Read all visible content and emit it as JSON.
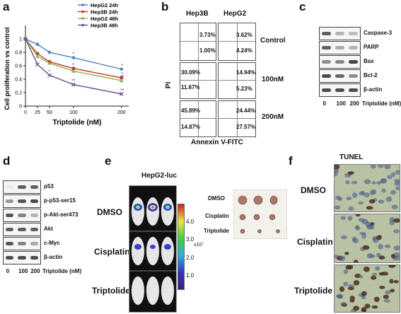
{
  "panels": {
    "a": "a",
    "b": "b",
    "c": "c",
    "d": "d",
    "e": "e",
    "f": "f"
  },
  "chart_data": {
    "type": "line",
    "xlabel": "Triptolide (nM)",
    "ylabel": "Cell proliferation vs control",
    "x": [
      0,
      25,
      50,
      100,
      200
    ],
    "xticks": [
      "0",
      "25",
      "50",
      "100",
      "200"
    ],
    "yticks": [
      "0",
      "0.2",
      "0.4",
      "0.6",
      "0.8",
      "1"
    ],
    "xlim": [
      0,
      215
    ],
    "ylim": [
      0,
      1.2
    ],
    "legend_position": "top-right",
    "series": [
      {
        "name": "HepG2 24h",
        "color": "#4a7fc1",
        "marker": "diamond",
        "values": [
          1.0,
          0.92,
          0.8,
          0.72,
          0.55
        ]
      },
      {
        "name": "Hep3B 24h",
        "color": "#c0392b",
        "marker": "square",
        "values": [
          1.0,
          0.78,
          0.66,
          0.56,
          0.42
        ]
      },
      {
        "name": "HepG2 48h",
        "color": "#8cb34a",
        "marker": "triangle",
        "values": [
          1.0,
          0.74,
          0.64,
          0.52,
          0.38
        ]
      },
      {
        "name": "Hep3B 48h",
        "color": "#6b4a8c",
        "marker": "x",
        "values": [
          1.0,
          0.62,
          0.46,
          0.32,
          0.18
        ]
      }
    ],
    "annotations": [
      "*",
      "*",
      "*",
      "*",
      "*",
      "**",
      "**",
      "**"
    ]
  },
  "panel_b": {
    "col_headers": [
      "Hep3B",
      "HepG2"
    ],
    "row_labels": [
      "Control",
      "100nM",
      "200nM"
    ],
    "ylabel": "PI",
    "xlabel": "Annexin V-FITC",
    "percents": [
      [
        [
          "3.73%",
          "1.00%"
        ],
        [
          "3.62%",
          "4.24%"
        ]
      ],
      [
        [
          "30.09%",
          "11.67%"
        ],
        [
          "14.94%",
          "5.23%"
        ]
      ],
      [
        [
          "45.89%",
          "14.87%"
        ],
        [
          "24.44%",
          "27.57%"
        ]
      ]
    ]
  },
  "panel_c": {
    "rows": [
      "Caspase-3",
      "PARP",
      "Bax",
      "Bcl-2",
      "β-actin"
    ],
    "lanes": [
      "0",
      "100",
      "200"
    ],
    "unit": "Triptolide (nM)"
  },
  "panel_d": {
    "rows": [
      "p53",
      "p-p53-ser15",
      "p-Akt-ser473",
      "Akt",
      "c-Myc",
      "β-actin"
    ],
    "lanes": [
      "0",
      "100",
      "200"
    ],
    "unit": "Triptolide (nM)"
  },
  "panel_e": {
    "title": "HepG2-luc",
    "groups": [
      "DMSO",
      "Cisplatin",
      "Triptolide"
    ],
    "scale_ticks": [
      "4.0",
      "3.0",
      "2.0",
      "1.0"
    ],
    "scale_exp": "x10⁷",
    "tumor_labels": [
      "DMSO",
      "Cisplatin",
      "Triptolide"
    ]
  },
  "panel_f": {
    "title": "TUNEL",
    "groups": [
      "DMSO",
      "Cisplatin",
      "Triptolide"
    ]
  }
}
